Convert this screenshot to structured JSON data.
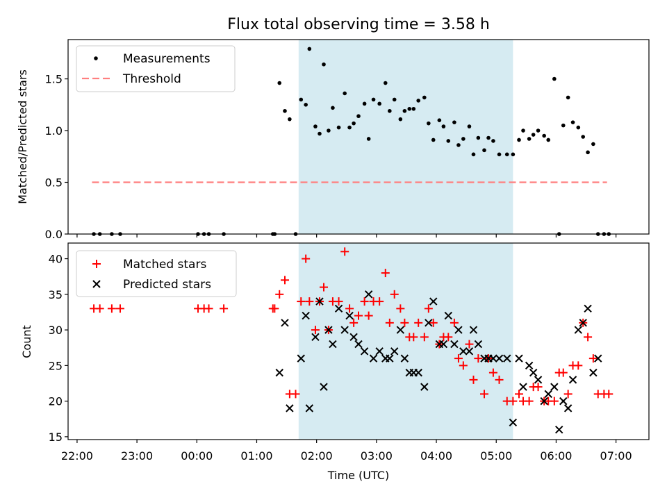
{
  "chart_data": [
    {
      "type": "scatter",
      "panel": "top",
      "title": "Flux total observing time = 3.58 h",
      "ylabel": "Matched/Predicted stars",
      "xlabel": "",
      "ylim": [
        0,
        1.88
      ],
      "yticks": [
        0.0,
        0.5,
        1.0,
        1.5
      ],
      "ytick_labels": [
        "0.0",
        "0.5",
        "1.0",
        "1.5"
      ],
      "shaded_interval_hours": [
        1.7,
        5.28
      ],
      "legend": {
        "position": "top-left",
        "entries": [
          "Measurements",
          "Threshold"
        ]
      },
      "threshold": {
        "name": "Threshold",
        "value": 0.5,
        "x_range": [
          -1.75,
          6.85
        ],
        "color": "#ff7f7f"
      },
      "series": [
        {
          "name": "Measurements",
          "color": "#000000",
          "x": [
            -1.72,
            -1.62,
            -1.42,
            -1.28,
            0.02,
            0.12,
            0.2,
            0.45,
            1.27,
            1.3,
            1.65,
            1.38,
            1.47,
            1.55,
            1.74,
            1.82,
            1.88,
            1.98,
            2.05,
            2.12,
            2.2,
            2.27,
            2.37,
            2.47,
            2.55,
            2.62,
            2.7,
            2.8,
            2.87,
            2.95,
            3.05,
            3.15,
            3.22,
            3.3,
            3.4,
            3.47,
            3.55,
            3.62,
            3.7,
            3.8,
            3.87,
            3.95,
            4.05,
            4.12,
            4.2,
            4.3,
            4.37,
            4.45,
            4.55,
            4.62,
            4.7,
            4.8,
            4.87,
            4.95,
            5.05,
            5.18,
            5.28,
            5.38,
            5.45,
            5.55,
            5.62,
            5.7,
            5.8,
            5.87,
            5.97,
            6.05,
            6.12,
            6.2,
            6.28,
            6.37,
            6.45,
            6.53,
            6.62,
            6.7,
            6.8,
            6.88
          ],
          "y": [
            0,
            0,
            0,
            0,
            0,
            0,
            0,
            0,
            0,
            0,
            0,
            1.46,
            1.19,
            1.11,
            1.3,
            1.25,
            1.79,
            1.04,
            0.97,
            1.64,
            1.0,
            1.22,
            1.03,
            1.36,
            1.03,
            1.07,
            1.14,
            1.26,
            0.92,
            1.3,
            1.26,
            1.46,
            1.19,
            1.3,
            1.11,
            1.19,
            1.21,
            1.21,
            1.29,
            1.32,
            1.07,
            0.91,
            1.1,
            1.04,
            0.9,
            1.08,
            0.86,
            0.92,
            1.04,
            0.77,
            0.93,
            0.81,
            0.93,
            0.9,
            0.77,
            0.77,
            0.77,
            0.91,
            1.0,
            0.92,
            0.96,
            1.0,
            0.95,
            0.91,
            1.5,
            0,
            1.05,
            1.32,
            1.08,
            1.03,
            0.94,
            0.79,
            0.87,
            0,
            0,
            0
          ]
        }
      ]
    },
    {
      "type": "scatter",
      "panel": "bottom",
      "title": "",
      "ylabel": "Count",
      "xlabel": "Time (UTC)",
      "ylim": [
        14.6,
        42.2
      ],
      "yticks": [
        15,
        20,
        25,
        30,
        35,
        40
      ],
      "ytick_labels": [
        "15",
        "20",
        "25",
        "30",
        "35",
        "40"
      ],
      "xlim_hours": [
        -2.15,
        7.55
      ],
      "xticks_hours": [
        -2,
        -1,
        0,
        1,
        2,
        3,
        4,
        5,
        6,
        7
      ],
      "xtick_labels": [
        "22:00",
        "23:00",
        "00:00",
        "01:00",
        "02:00",
        "03:00",
        "04:00",
        "05:00",
        "06:00",
        "07:00"
      ],
      "shaded_interval_hours": [
        1.7,
        5.28
      ],
      "legend": {
        "position": "top-left",
        "entries": [
          "Matched stars",
          "Predicted stars"
        ]
      },
      "series": [
        {
          "name": "Matched stars",
          "marker": "plus",
          "color": "#ff0000",
          "x": [
            -1.72,
            -1.62,
            -1.42,
            -1.28,
            0.02,
            0.12,
            0.2,
            0.45,
            1.27,
            1.3,
            1.38,
            1.47,
            1.55,
            1.65,
            1.74,
            1.82,
            1.88,
            1.98,
            2.05,
            2.12,
            2.2,
            2.27,
            2.37,
            2.47,
            2.55,
            2.62,
            2.7,
            2.8,
            2.87,
            2.95,
            3.05,
            3.15,
            3.22,
            3.3,
            3.4,
            3.47,
            3.55,
            3.62,
            3.7,
            3.8,
            3.87,
            3.95,
            4.05,
            4.12,
            4.2,
            4.3,
            4.37,
            4.45,
            4.55,
            4.62,
            4.7,
            4.8,
            4.87,
            4.95,
            5.05,
            5.18,
            5.28,
            5.38,
            5.45,
            5.55,
            5.62,
            5.7,
            5.8,
            5.87,
            5.97,
            6.05,
            6.12,
            6.2,
            6.28,
            6.37,
            6.45,
            6.53,
            6.62,
            6.7,
            6.8,
            6.88
          ],
          "y": [
            33,
            33,
            33,
            33,
            33,
            33,
            33,
            33,
            33,
            33,
            35,
            37,
            21,
            21,
            34,
            40,
            34,
            30,
            34,
            36,
            30,
            34,
            34,
            41,
            33,
            31,
            32,
            34,
            32,
            34,
            34,
            38,
            31,
            35,
            33,
            31,
            29,
            29,
            31,
            29,
            33,
            31,
            28,
            29,
            29,
            31,
            26,
            25,
            28,
            23,
            26,
            21,
            26,
            24,
            23,
            20,
            20,
            21,
            20,
            20,
            22,
            22,
            20,
            20,
            20,
            24,
            24,
            21,
            25,
            25,
            31,
            29,
            26,
            21,
            21,
            21
          ]
        },
        {
          "name": "Predicted stars",
          "marker": "x",
          "color": "#000000",
          "x": [
            1.38,
            1.47,
            1.55,
            1.74,
            1.82,
            1.88,
            1.98,
            2.05,
            2.12,
            2.2,
            2.27,
            2.37,
            2.47,
            2.55,
            2.62,
            2.7,
            2.8,
            2.87,
            2.95,
            3.05,
            3.15,
            3.22,
            3.3,
            3.4,
            3.47,
            3.55,
            3.62,
            3.7,
            3.8,
            3.87,
            3.95,
            4.05,
            4.12,
            4.2,
            4.3,
            4.37,
            4.45,
            4.55,
            4.62,
            4.7,
            4.8,
            4.87,
            4.95,
            5.05,
            5.18,
            5.28,
            5.38,
            5.45,
            5.55,
            5.62,
            5.7,
            5.8,
            5.87,
            5.97,
            6.05,
            6.12,
            6.2,
            6.28,
            6.37,
            6.45,
            6.53,
            6.62,
            6.7
          ],
          "y": [
            24,
            31,
            19,
            26,
            32,
            19,
            29,
            34,
            22,
            30,
            28,
            33,
            30,
            32,
            29,
            28,
            27,
            35,
            26,
            27,
            26,
            26,
            27,
            30,
            26,
            24,
            24,
            24,
            22,
            31,
            34,
            28,
            28,
            32,
            28,
            30,
            27,
            27,
            30,
            28,
            26,
            26,
            26,
            26,
            26,
            17,
            26,
            22,
            25,
            24,
            23,
            20,
            21,
            22,
            16,
            20,
            19,
            23,
            30,
            31,
            33,
            24,
            26
          ]
        }
      ]
    }
  ]
}
